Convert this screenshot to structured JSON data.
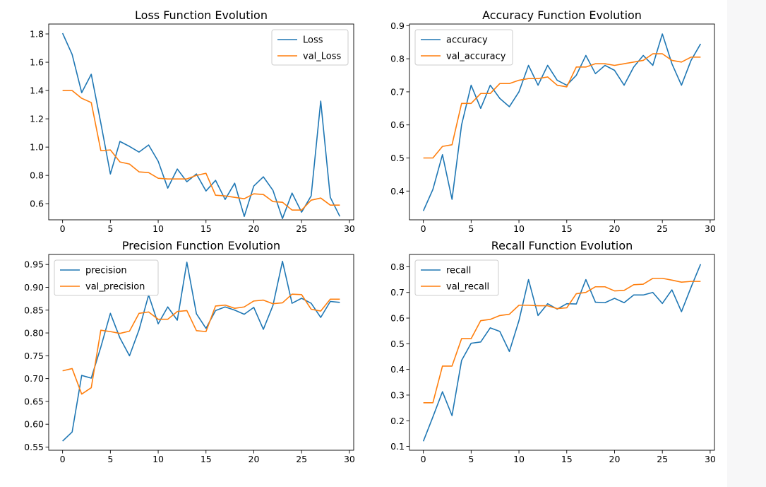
{
  "chart_data": [
    {
      "type": "line",
      "title": "Loss Function Evolution",
      "xlabel": "",
      "ylabel": "",
      "xlim": [
        -1.45,
        30.45
      ],
      "ylim": [
        0.486,
        1.87
      ],
      "xticks": [
        0,
        5,
        10,
        15,
        20,
        25,
        30
      ],
      "yticks": [
        0.6,
        0.8,
        1.0,
        1.2,
        1.4,
        1.6,
        1.8
      ],
      "ytick_decimals": 1,
      "legend": "top-right",
      "grid": false,
      "x": [
        0,
        1,
        2,
        3,
        4,
        5,
        6,
        7,
        8,
        9,
        10,
        11,
        12,
        13,
        14,
        15,
        16,
        17,
        18,
        19,
        20,
        21,
        22,
        23,
        24,
        25,
        26,
        27,
        28,
        29
      ],
      "series": [
        {
          "name": "Loss",
          "color": "#1f77b4",
          "values": [
            1.805,
            1.655,
            1.385,
            1.515,
            1.17,
            0.81,
            1.04,
            1.005,
            0.965,
            1.015,
            0.9,
            0.71,
            0.845,
            0.755,
            0.81,
            0.69,
            0.765,
            0.63,
            0.745,
            0.51,
            0.725,
            0.79,
            0.695,
            0.495,
            0.675,
            0.54,
            0.655,
            1.325,
            0.645,
            0.51
          ]
        },
        {
          "name": "val_Loss",
          "color": "#ff7f0e",
          "values": [
            1.4,
            1.4,
            1.345,
            1.315,
            0.975,
            0.98,
            0.895,
            0.88,
            0.825,
            0.82,
            0.78,
            0.775,
            0.775,
            0.775,
            0.8,
            0.815,
            0.66,
            0.655,
            0.645,
            0.635,
            0.67,
            0.665,
            0.615,
            0.61,
            0.555,
            0.555,
            0.625,
            0.64,
            0.59,
            0.59
          ]
        }
      ]
    },
    {
      "type": "line",
      "title": "Accuracy Function Evolution",
      "xlabel": "",
      "ylabel": "",
      "xlim": [
        -1.45,
        30.45
      ],
      "ylim": [
        0.313,
        0.905
      ],
      "xticks": [
        0,
        5,
        10,
        15,
        20,
        25,
        30
      ],
      "yticks": [
        0.4,
        0.5,
        0.6,
        0.7,
        0.8,
        0.9
      ],
      "ytick_decimals": 1,
      "legend": "top-left",
      "grid": false,
      "x": [
        0,
        1,
        2,
        3,
        4,
        5,
        6,
        7,
        8,
        9,
        10,
        11,
        12,
        13,
        14,
        15,
        16,
        17,
        18,
        19,
        20,
        21,
        22,
        23,
        24,
        25,
        26,
        27,
        28,
        29
      ],
      "series": [
        {
          "name": "accuracy",
          "color": "#1f77b4",
          "values": [
            0.34,
            0.405,
            0.51,
            0.375,
            0.6,
            0.72,
            0.65,
            0.72,
            0.68,
            0.655,
            0.7,
            0.78,
            0.72,
            0.78,
            0.735,
            0.72,
            0.75,
            0.81,
            0.755,
            0.78,
            0.765,
            0.72,
            0.775,
            0.81,
            0.78,
            0.875,
            0.785,
            0.72,
            0.795,
            0.845
          ]
        },
        {
          "name": "val_accuracy",
          "color": "#ff7f0e",
          "values": [
            0.5,
            0.5,
            0.535,
            0.54,
            0.665,
            0.665,
            0.695,
            0.695,
            0.725,
            0.725,
            0.735,
            0.74,
            0.74,
            0.745,
            0.72,
            0.715,
            0.775,
            0.775,
            0.785,
            0.785,
            0.78,
            0.785,
            0.79,
            0.795,
            0.815,
            0.815,
            0.795,
            0.79,
            0.805,
            0.805
          ]
        }
      ]
    },
    {
      "type": "line",
      "title": "Precision Function Evolution",
      "xlabel": "",
      "ylabel": "",
      "xlim": [
        -1.45,
        30.45
      ],
      "ylim": [
        0.543,
        0.972
      ],
      "xticks": [
        0,
        5,
        10,
        15,
        20,
        25,
        30
      ],
      "yticks": [
        0.55,
        0.6,
        0.65,
        0.7,
        0.75,
        0.8,
        0.85,
        0.9,
        0.95
      ],
      "ytick_decimals": 2,
      "legend": "top-left",
      "grid": false,
      "x": [
        0,
        1,
        2,
        3,
        4,
        5,
        6,
        7,
        8,
        9,
        10,
        11,
        12,
        13,
        14,
        15,
        16,
        17,
        18,
        19,
        20,
        21,
        22,
        23,
        24,
        25,
        26,
        27,
        28,
        29
      ],
      "series": [
        {
          "name": "precision",
          "color": "#1f77b4",
          "values": [
            0.563,
            0.583,
            0.707,
            0.701,
            0.769,
            0.843,
            0.789,
            0.75,
            0.807,
            0.883,
            0.82,
            0.857,
            0.828,
            0.955,
            0.842,
            0.81,
            0.849,
            0.857,
            0.85,
            0.841,
            0.856,
            0.808,
            0.86,
            0.957,
            0.865,
            0.876,
            0.865,
            0.834,
            0.869,
            0.867
          ]
        },
        {
          "name": "val_precision",
          "color": "#ff7f0e",
          "values": [
            0.717,
            0.722,
            0.666,
            0.68,
            0.806,
            0.803,
            0.799,
            0.804,
            0.843,
            0.846,
            0.83,
            0.83,
            0.847,
            0.849,
            0.805,
            0.803,
            0.859,
            0.861,
            0.854,
            0.857,
            0.87,
            0.872,
            0.864,
            0.866,
            0.885,
            0.884,
            0.852,
            0.848,
            0.874,
            0.874
          ]
        }
      ]
    },
    {
      "type": "line",
      "title": "Recall Function Evolution",
      "xlabel": "",
      "ylabel": "",
      "xlim": [
        -1.45,
        30.45
      ],
      "ylim": [
        0.085,
        0.848
      ],
      "xticks": [
        0,
        5,
        10,
        15,
        20,
        25,
        30
      ],
      "yticks": [
        0.1,
        0.2,
        0.3,
        0.4,
        0.5,
        0.6,
        0.7,
        0.8
      ],
      "ytick_decimals": 1,
      "legend": "top-left",
      "grid": false,
      "x": [
        0,
        1,
        2,
        3,
        4,
        5,
        6,
        7,
        8,
        9,
        10,
        11,
        12,
        13,
        14,
        15,
        16,
        17,
        18,
        19,
        20,
        21,
        22,
        23,
        24,
        25,
        26,
        27,
        28,
        29
      ],
      "series": [
        {
          "name": "recall",
          "color": "#1f77b4",
          "values": [
            0.12,
            0.215,
            0.313,
            0.22,
            0.435,
            0.502,
            0.507,
            0.562,
            0.548,
            0.47,
            0.59,
            0.75,
            0.61,
            0.656,
            0.635,
            0.656,
            0.655,
            0.75,
            0.662,
            0.66,
            0.677,
            0.66,
            0.69,
            0.69,
            0.7,
            0.657,
            0.71,
            0.625,
            0.72,
            0.81
          ]
        },
        {
          "name": "val_recall",
          "color": "#ff7f0e",
          "values": [
            0.27,
            0.27,
            0.413,
            0.413,
            0.52,
            0.52,
            0.59,
            0.595,
            0.61,
            0.615,
            0.65,
            0.65,
            0.648,
            0.648,
            0.637,
            0.64,
            0.695,
            0.7,
            0.722,
            0.722,
            0.706,
            0.708,
            0.73,
            0.732,
            0.755,
            0.755,
            0.748,
            0.74,
            0.743,
            0.743
          ]
        }
      ]
    }
  ]
}
